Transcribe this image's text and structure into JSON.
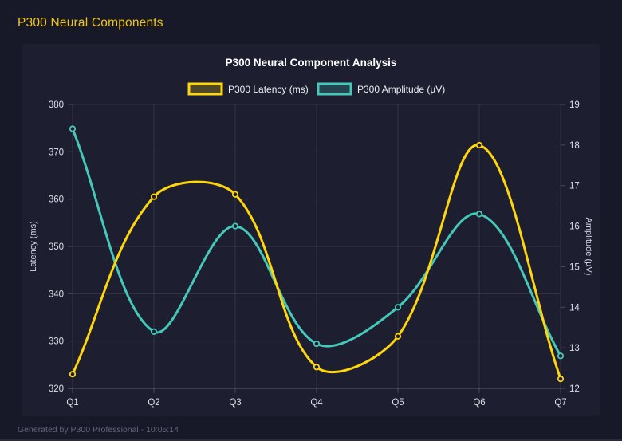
{
  "header": {
    "title": "P300 Neural Components"
  },
  "footer": {
    "text": "Generated by P300 Professional - 10:05:14"
  },
  "colors": {
    "background": "#181928",
    "panel": "#1d1f31",
    "header_accent": "#f2c512",
    "latency_line": "#ffd60a",
    "amplitude_line": "#45c8ba",
    "grid": "rgba(255,255,255,0.10)",
    "axis_border": "rgba(255,255,255,0.20)"
  },
  "chart_data": {
    "type": "line",
    "title": "P300 Neural Component Analysis",
    "categories": [
      "Q1",
      "Q2",
      "Q3",
      "Q4",
      "Q5",
      "Q6",
      "Q7"
    ],
    "series": [
      {
        "name": "P300 Latency (ms)",
        "axis": "left",
        "color": "#ffd60a",
        "values": [
          323,
          360.5,
          361,
          324.5,
          331,
          371.4,
          322
        ]
      },
      {
        "name": "P300 Amplitude (µV)",
        "axis": "right",
        "color": "#45c8ba",
        "values": [
          18.4,
          13.4,
          16.0,
          13.1,
          14.0,
          16.3,
          12.8
        ]
      }
    ],
    "axes": {
      "left": {
        "label": "Latency (ms)",
        "min": 320,
        "max": 380,
        "step": 10
      },
      "right": {
        "label": "Amplitude (µV)",
        "min": 12,
        "max": 19,
        "step": 1
      }
    },
    "grid": true,
    "legend_position": "top",
    "line_tension": 0.35,
    "point_style": "ring-circle"
  }
}
